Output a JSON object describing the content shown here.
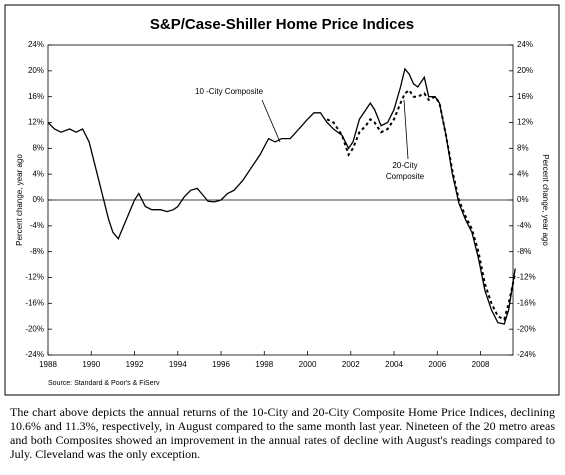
{
  "chart_data": {
    "type": "line",
    "title": "S&P/Case-Shiller Home Price Indices",
    "ylabel": "Percent change, year ago",
    "source": "Source: Standard & Poor's & FiServ",
    "annotations": [
      {
        "text": [
          "10 -City Composite"
        ]
      },
      {
        "text": [
          "20-City",
          "Composite"
        ]
      }
    ],
    "x": [
      1988.0,
      1988.3,
      1988.6,
      1989.0,
      1989.3,
      1989.6,
      1989.9,
      1990.2,
      1990.5,
      1990.8,
      1991.0,
      1991.25,
      1991.5,
      1991.75,
      1992.0,
      1992.2,
      1992.5,
      1992.8,
      1993.2,
      1993.5,
      1993.8,
      1994.0,
      1994.3,
      1994.6,
      1994.9,
      1995.1,
      1995.4,
      1995.7,
      1996.0,
      1996.3,
      1996.6,
      1997.0,
      1997.4,
      1997.8,
      1998.2,
      1998.5,
      1998.8,
      1999.2,
      1999.6,
      2000.0,
      2000.3,
      2000.6,
      2000.9,
      2001.2,
      2001.6,
      2001.9,
      2002.1,
      2002.4,
      2002.7,
      2002.9,
      2003.1,
      2003.4,
      2003.7,
      2004.0,
      2004.3,
      2004.5,
      2004.7,
      2004.9,
      2005.1,
      2005.4,
      2005.6,
      2005.9,
      2006.1,
      2006.4,
      2006.7,
      2007.0,
      2007.3,
      2007.6,
      2007.9,
      2008.2,
      2008.5,
      2008.8,
      2009.1,
      2009.3,
      2009.6
    ],
    "series": [
      {
        "name": "10 -City Composite",
        "color": "#000000",
        "dash": false,
        "values": [
          12,
          11,
          10.5,
          11,
          10.5,
          11,
          9,
          5,
          1,
          -3,
          -5,
          -6,
          -4,
          -2,
          0,
          1,
          -1,
          -1.5,
          -1.5,
          -1.8,
          -1.5,
          -1,
          0.5,
          1.5,
          1.8,
          1,
          -0.2,
          -0.3,
          0,
          1,
          1.5,
          3,
          5,
          7,
          9.5,
          9,
          9.5,
          9.5,
          11,
          12.5,
          13.5,
          13.5,
          12,
          11,
          10,
          8,
          9,
          12.5,
          14,
          15,
          14,
          11.5,
          12,
          14,
          17.5,
          20.3,
          19.5,
          18,
          17.5,
          19,
          16,
          16,
          15,
          10,
          4,
          -0.5,
          -3,
          -5,
          -9,
          -14,
          -17,
          -19,
          -19.2,
          -17,
          -10.6
        ]
      },
      {
        "name": "20-City Composite",
        "color": "#000000",
        "dash": true,
        "values": [
          null,
          null,
          null,
          null,
          null,
          null,
          null,
          null,
          null,
          null,
          null,
          null,
          null,
          null,
          null,
          null,
          null,
          null,
          null,
          null,
          null,
          null,
          null,
          null,
          null,
          null,
          null,
          null,
          null,
          null,
          null,
          null,
          null,
          null,
          null,
          null,
          null,
          null,
          null,
          null,
          null,
          null,
          12.5,
          12,
          10,
          7,
          8,
          10.5,
          11.5,
          12.5,
          12,
          10.5,
          11,
          12.5,
          15,
          16.5,
          17,
          16,
          16,
          16.5,
          15.5,
          16,
          15,
          10,
          4.5,
          0,
          -2.5,
          -4.5,
          -8,
          -13,
          -16,
          -18,
          -18.5,
          -16,
          -11.3
        ]
      }
    ],
    "xlim": [
      1988,
      2009.5
    ],
    "xticks": [
      1988,
      1990,
      1992,
      1994,
      1996,
      1998,
      2000,
      2002,
      2004,
      2006,
      2008
    ],
    "ylim": [
      -24,
      24
    ],
    "yticks": [
      {
        "value": -24,
        "label": "-24%"
      },
      {
        "value": -20,
        "label": "-20%"
      },
      {
        "value": -16,
        "label": "-16%"
      },
      {
        "value": -12,
        "label": "-12%"
      },
      {
        "value": -8,
        "label": "-8%"
      },
      {
        "value": -4,
        "label": "-4%"
      },
      {
        "value": 0,
        "label": "0%"
      },
      {
        "value": 4,
        "label": "4%"
      },
      {
        "value": 8,
        "label": "8%"
      },
      {
        "value": 12,
        "label": "12%"
      },
      {
        "value": 16,
        "label": "16%"
      },
      {
        "value": 20,
        "label": "20%"
      },
      {
        "value": 24,
        "label": "24%"
      }
    ],
    "zero_line": true
  },
  "caption": "The chart above depicts the annual returns of the 10-City and 20-City Composite Home Price Indices, declining 10.6% and 11.3%, respectively, in August compared to the same month last year. Nineteen of the 20 metro areas and both Composites showed an improvement in the annual rates of decline with August's readings compared to July. Cleveland was the only exception."
}
